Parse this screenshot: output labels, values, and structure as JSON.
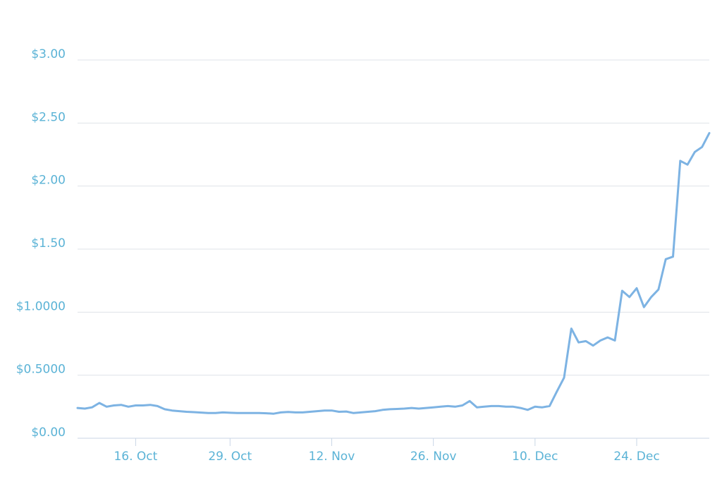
{
  "chart_data": {
    "type": "line",
    "title": "",
    "xlabel": "",
    "ylabel": "",
    "x_start": "2017-10-08",
    "x_end": "2017-12-31",
    "ylim": [
      0,
      3.0
    ],
    "grid": true,
    "colors": {
      "line": "#7db3e3",
      "tick_text": "#5bb3d6",
      "grid": "#dfe3e8",
      "axis": "#c9d6e6"
    },
    "y_ticks": [
      {
        "value": 0,
        "label": "$0.00"
      },
      {
        "value": 0.5,
        "label": "$0.5000"
      },
      {
        "value": 1.0,
        "label": "$1.0000"
      },
      {
        "value": 1.5,
        "label": "$1.50"
      },
      {
        "value": 2.0,
        "label": "$2.00"
      },
      {
        "value": 2.5,
        "label": "$2.50"
      },
      {
        "value": 3.0,
        "label": "$3.00"
      }
    ],
    "x_ticks": [
      {
        "date": "2017-10-16",
        "label": "16. Oct"
      },
      {
        "date": "2017-10-29",
        "label": "29. Oct"
      },
      {
        "date": "2017-11-12",
        "label": "12. Nov"
      },
      {
        "date": "2017-11-26",
        "label": "26. Nov"
      },
      {
        "date": "2017-12-10",
        "label": "10. Dec"
      },
      {
        "date": "2017-12-24",
        "label": "24. Dec"
      }
    ],
    "series": [
      {
        "points": [
          [
            "2017-10-08",
            0.24
          ],
          [
            "2017-10-09",
            0.235
          ],
          [
            "2017-10-10",
            0.245
          ],
          [
            "2017-10-11",
            0.28
          ],
          [
            "2017-10-12",
            0.25
          ],
          [
            "2017-10-13",
            0.26
          ],
          [
            "2017-10-14",
            0.265
          ],
          [
            "2017-10-15",
            0.25
          ],
          [
            "2017-10-16",
            0.26
          ],
          [
            "2017-10-17",
            0.26
          ],
          [
            "2017-10-18",
            0.265
          ],
          [
            "2017-10-19",
            0.255
          ],
          [
            "2017-10-20",
            0.23
          ],
          [
            "2017-10-21",
            0.22
          ],
          [
            "2017-10-22",
            0.215
          ],
          [
            "2017-10-23",
            0.21
          ],
          [
            "2017-10-24",
            0.207
          ],
          [
            "2017-10-25",
            0.204
          ],
          [
            "2017-10-26",
            0.2
          ],
          [
            "2017-10-27",
            0.2
          ],
          [
            "2017-10-28",
            0.205
          ],
          [
            "2017-10-29",
            0.202
          ],
          [
            "2017-10-30",
            0.2
          ],
          [
            "2017-10-31",
            0.2
          ],
          [
            "2017-11-01",
            0.2
          ],
          [
            "2017-11-02",
            0.2
          ],
          [
            "2017-11-03",
            0.198
          ],
          [
            "2017-11-04",
            0.195
          ],
          [
            "2017-11-05",
            0.205
          ],
          [
            "2017-11-06",
            0.208
          ],
          [
            "2017-11-07",
            0.205
          ],
          [
            "2017-11-08",
            0.205
          ],
          [
            "2017-11-09",
            0.21
          ],
          [
            "2017-11-10",
            0.215
          ],
          [
            "2017-11-11",
            0.22
          ],
          [
            "2017-11-12",
            0.22
          ],
          [
            "2017-11-13",
            0.21
          ],
          [
            "2017-11-14",
            0.212
          ],
          [
            "2017-11-15",
            0.2
          ],
          [
            "2017-11-16",
            0.205
          ],
          [
            "2017-11-17",
            0.21
          ],
          [
            "2017-11-18",
            0.215
          ],
          [
            "2017-11-19",
            0.225
          ],
          [
            "2017-11-20",
            0.23
          ],
          [
            "2017-11-21",
            0.232
          ],
          [
            "2017-11-22",
            0.235
          ],
          [
            "2017-11-23",
            0.24
          ],
          [
            "2017-11-24",
            0.235
          ],
          [
            "2017-11-25",
            0.24
          ],
          [
            "2017-11-26",
            0.245
          ],
          [
            "2017-11-27",
            0.25
          ],
          [
            "2017-11-28",
            0.255
          ],
          [
            "2017-11-29",
            0.25
          ],
          [
            "2017-11-30",
            0.26
          ],
          [
            "2017-12-01",
            0.295
          ],
          [
            "2017-12-02",
            0.245
          ],
          [
            "2017-12-03",
            0.25
          ],
          [
            "2017-12-04",
            0.255
          ],
          [
            "2017-12-05",
            0.255
          ],
          [
            "2017-12-06",
            0.25
          ],
          [
            "2017-12-07",
            0.25
          ],
          [
            "2017-12-08",
            0.24
          ],
          [
            "2017-12-09",
            0.225
          ],
          [
            "2017-12-10",
            0.25
          ],
          [
            "2017-12-11",
            0.245
          ],
          [
            "2017-12-12",
            0.255
          ],
          [
            "2017-12-13",
            0.37
          ],
          [
            "2017-12-14",
            0.48
          ],
          [
            "2017-12-15",
            0.87
          ],
          [
            "2017-12-16",
            0.76
          ],
          [
            "2017-12-17",
            0.77
          ],
          [
            "2017-12-18",
            0.735
          ],
          [
            "2017-12-19",
            0.775
          ],
          [
            "2017-12-20",
            0.8
          ],
          [
            "2017-12-21",
            0.775
          ],
          [
            "2017-12-22",
            1.17
          ],
          [
            "2017-12-23",
            1.12
          ],
          [
            "2017-12-24",
            1.19
          ],
          [
            "2017-12-25",
            1.04
          ],
          [
            "2017-12-26",
            1.12
          ],
          [
            "2017-12-27",
            1.18
          ],
          [
            "2017-12-28",
            1.42
          ],
          [
            "2017-12-29",
            1.44
          ],
          [
            "2017-12-30",
            2.2
          ],
          [
            "2017-12-31",
            2.17
          ],
          [
            "2018-01-01",
            2.27
          ],
          [
            "2018-01-02",
            2.31
          ],
          [
            "2018-01-03",
            2.42
          ]
        ]
      }
    ]
  }
}
